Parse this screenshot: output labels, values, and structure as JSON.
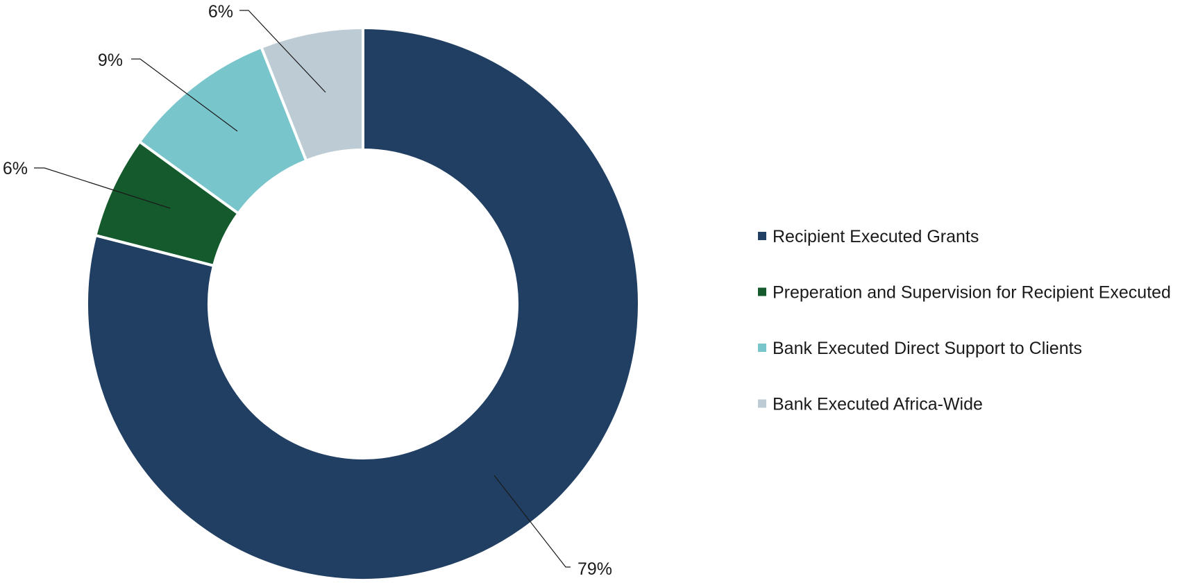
{
  "chart_data": {
    "type": "pie",
    "variant": "donut",
    "title": "",
    "categories": [
      "Recipient Executed Grants",
      "Preperation and Supervision for Recipient Executed",
      "Bank Executed Direct Support to Clients",
      "Bank Executed Africa-Wide"
    ],
    "values": [
      79,
      6,
      9,
      6
    ],
    "data_labels": [
      "79%",
      "6%",
      "9%",
      "6%"
    ],
    "unit": "%",
    "colors": [
      "#213f63",
      "#145a2c",
      "#79c5cc",
      "#bdcbd5"
    ],
    "legend_position": "right",
    "grid": false
  }
}
